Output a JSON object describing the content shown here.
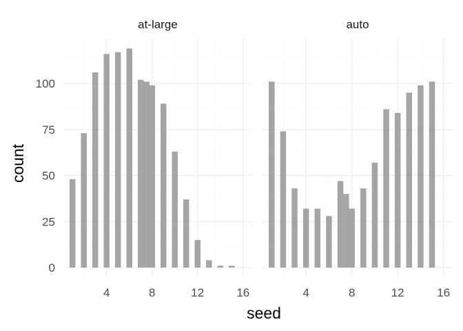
{
  "chart_data": {
    "type": "bar",
    "xlabel": "seed",
    "ylabel": "count",
    "x_ticks": [
      4,
      8,
      12,
      16
    ],
    "y_ticks": [
      0,
      25,
      50,
      75,
      100
    ],
    "xlim": [
      0.2,
      16.8
    ],
    "ylim": [
      0,
      120
    ],
    "grid": true,
    "bar_color": "#8c8c8c",
    "panels": [
      {
        "name": "at-large",
        "x": [
          1,
          2,
          3,
          4,
          5,
          6,
          7,
          7.5,
          8,
          9,
          10,
          11,
          12,
          13,
          14,
          15
        ],
        "values": [
          48,
          73,
          106,
          116,
          117,
          119,
          102,
          101,
          99,
          89,
          63,
          37,
          15,
          4,
          1,
          1
        ]
      },
      {
        "name": "auto",
        "x": [
          1,
          2,
          3,
          4,
          5,
          6,
          7,
          7.5,
          8,
          9,
          10,
          11,
          12,
          13,
          14,
          15,
          16
        ],
        "values": [
          101,
          74,
          43,
          32,
          32,
          28,
          47,
          40,
          32,
          43,
          57,
          86,
          84,
          95,
          99,
          101,
          0
        ]
      }
    ]
  }
}
